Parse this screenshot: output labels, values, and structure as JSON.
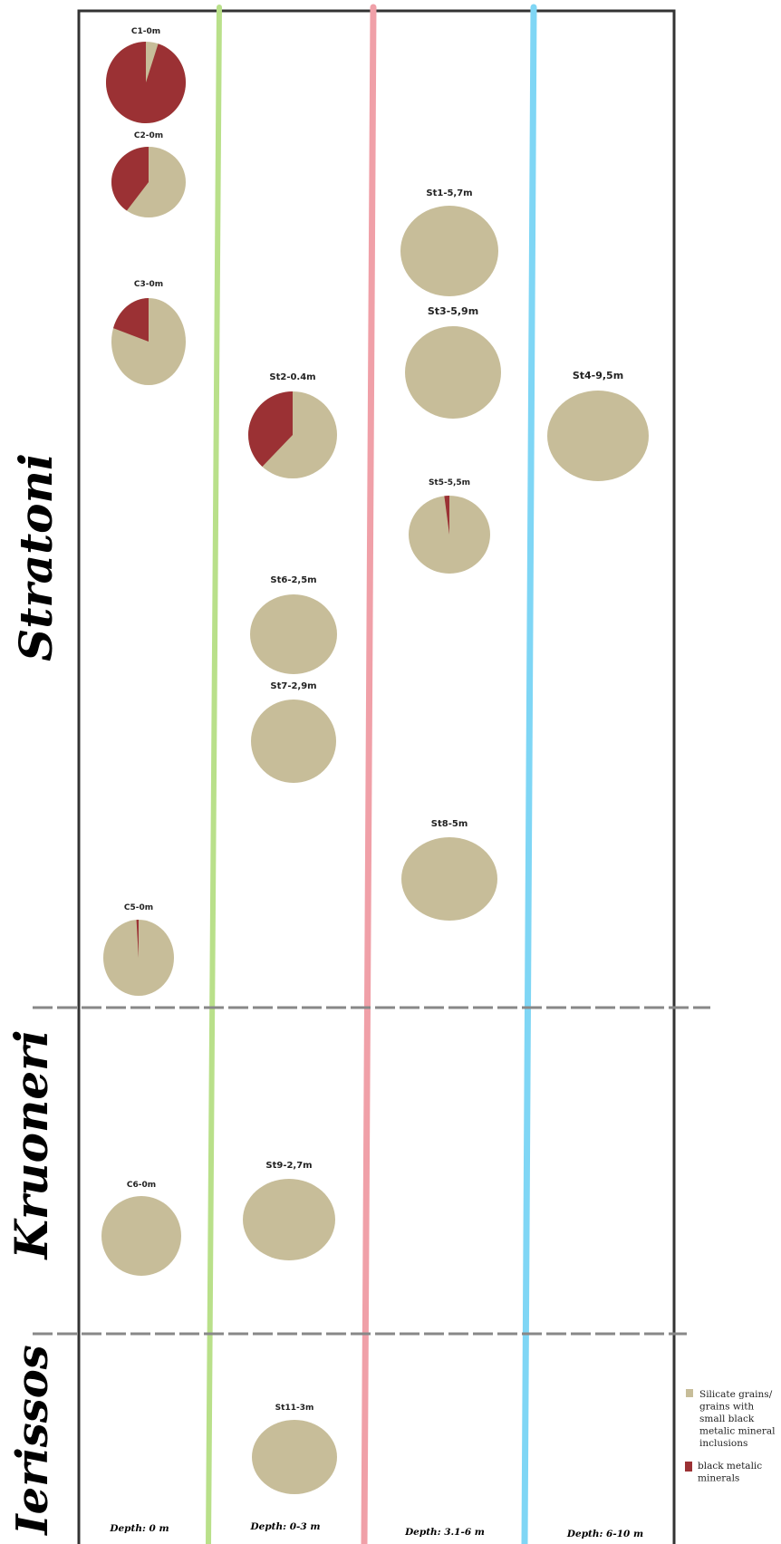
{
  "chart_data": {
    "type": "pie",
    "colors": {
      "silicate": "#c7bd99",
      "metallic": "#9b3134",
      "zone_line_1": "#b9e08a",
      "zone_line_2": "#f0a0a8",
      "zone_line_3": "#7fd6f5",
      "frame": "#333333",
      "divider": "#888888"
    },
    "depth_zones": [
      "Depth: 0 m",
      "Depth: 0-3 m",
      "Depth: 3.1-6 m",
      "Depth: 6-10 m"
    ],
    "regions": [
      "Stratoni",
      "Kruoneri",
      "Ierissos"
    ],
    "legend": [
      {
        "label": "Silicate grains/ grains with small black metalic mineral inclusions",
        "color_key": "silicate"
      },
      {
        "label": "black metalic minerals",
        "color_key": "metallic"
      }
    ],
    "samples": [
      {
        "label": "C1-0m",
        "region": "Stratoni",
        "zone": "Depth: 0 m",
        "metallic_fraction": 0.95
      },
      {
        "label": "C2-0m",
        "region": "Stratoni",
        "zone": "Depth: 0 m",
        "metallic_fraction": 0.4
      },
      {
        "label": "C3-0m",
        "region": "Stratoni",
        "zone": "Depth: 0 m",
        "metallic_fraction": 0.2
      },
      {
        "label": "C5-0m",
        "region": "Stratoni",
        "zone": "Depth: 0 m",
        "metallic_fraction": 0.01
      },
      {
        "label": "St2-0.4m",
        "region": "Stratoni",
        "zone": "Depth: 0-3 m",
        "metallic_fraction": 0.38
      },
      {
        "label": "St6-2,5m",
        "region": "Stratoni",
        "zone": "Depth: 0-3 m",
        "metallic_fraction": 0
      },
      {
        "label": "St7-2,9m",
        "region": "Stratoni",
        "zone": "Depth: 0-3 m",
        "metallic_fraction": 0
      },
      {
        "label": "St1-5,7m",
        "region": "Stratoni",
        "zone": "Depth: 3.1-6 m",
        "metallic_fraction": 0
      },
      {
        "label": "St3-5,9m",
        "region": "Stratoni",
        "zone": "Depth: 3.1-6 m",
        "metallic_fraction": 0
      },
      {
        "label": "St5-5,5m",
        "region": "Stratoni",
        "zone": "Depth: 3.1-6 m",
        "metallic_fraction": 0.02
      },
      {
        "label": "St8-5m",
        "region": "Stratoni",
        "zone": "Depth: 3.1-6 m",
        "metallic_fraction": 0
      },
      {
        "label": "St4-9,5m",
        "region": "Stratoni",
        "zone": "Depth: 6-10 m",
        "metallic_fraction": 0
      },
      {
        "label": "C6-0m",
        "region": "Kruoneri",
        "zone": "Depth: 0 m",
        "metallic_fraction": 0
      },
      {
        "label": "St9-2,7m",
        "region": "Kruoneri",
        "zone": "Depth: 0-3 m",
        "metallic_fraction": 0
      },
      {
        "label": "St11-3m",
        "region": "Ierissos",
        "zone": "Depth: 0-3 m",
        "metallic_fraction": 0
      }
    ]
  }
}
